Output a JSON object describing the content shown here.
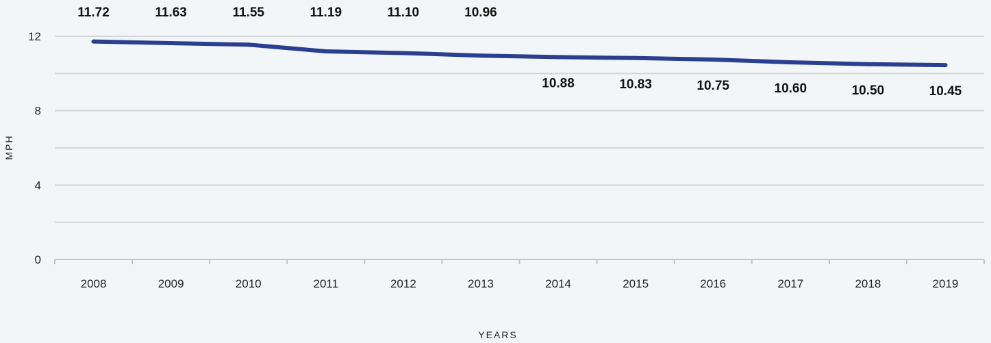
{
  "chart_data": {
    "type": "line",
    "title": "",
    "xlabel": "YEARS",
    "ylabel": "MPH",
    "ylim": [
      0,
      12
    ],
    "yticks": [
      0,
      4,
      8,
      12
    ],
    "grid": true,
    "categories": [
      "2008",
      "2009",
      "2010",
      "2011",
      "2012",
      "2013",
      "2014",
      "2015",
      "2016",
      "2017",
      "2018",
      "2019"
    ],
    "series": [
      {
        "values": [
          11.72,
          11.63,
          11.55,
          11.19,
          11.1,
          10.96,
          10.88,
          10.83,
          10.75,
          10.6,
          10.5,
          10.45
        ],
        "labels": [
          "11.72",
          "11.63",
          "11.55",
          "11.19",
          "11.10",
          "10.96",
          "10.88",
          "10.83",
          "10.75",
          "10.60",
          "10.50",
          "10.45"
        ],
        "label_positions": [
          "above",
          "above",
          "above",
          "above",
          "above",
          "above",
          "below",
          "below",
          "below",
          "below",
          "below",
          "below"
        ],
        "color": "#2a3f8f"
      }
    ],
    "colors": {
      "line": "#2a3f8f",
      "grid": "#d3d6d9",
      "axis": "#bfc3c7",
      "background": "#f3f6f8"
    }
  }
}
